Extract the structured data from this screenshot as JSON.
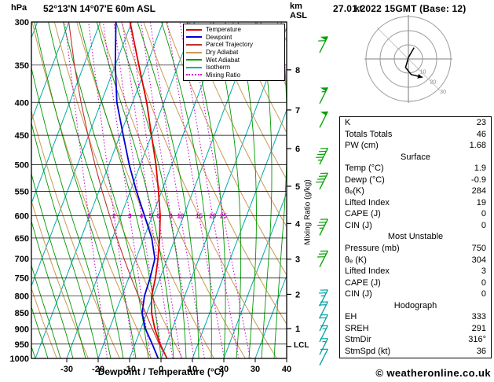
{
  "header": {
    "pressure_unit": "hPa",
    "station": "52°13'N 14°07'E 60m ASL",
    "altitude_unit_top": "km",
    "altitude_unit_bottom": "ASL",
    "datetime": "27.01.2022 15GMT (Base: 12)"
  },
  "axes": {
    "x_label": "Dewpoint / Temperature (°C)",
    "temp_ticks_C": [
      -30,
      -20,
      -10,
      0,
      10,
      20,
      30,
      40
    ],
    "pressure_levels_hPa": [
      300,
      350,
      400,
      450,
      500,
      550,
      600,
      650,
      700,
      750,
      800,
      850,
      900,
      950,
      1000
    ],
    "km_ticks": [
      {
        "value": "8",
        "pressure": 356
      },
      {
        "value": "7",
        "pressure": 411
      },
      {
        "value": "6",
        "pressure": 472
      },
      {
        "value": "5",
        "pressure": 540
      },
      {
        "value": "4",
        "pressure": 617
      },
      {
        "value": "3",
        "pressure": 701
      },
      {
        "value": "2",
        "pressure": 795
      },
      {
        "value": "1",
        "pressure": 899
      }
    ],
    "lcl": {
      "label": "LCL",
      "pressure": 958
    }
  },
  "mixing_ratio": {
    "axis_label": "Mixing Ratio (g/kg)",
    "values": [
      1,
      2,
      3,
      4,
      5,
      6,
      8,
      10,
      15,
      20,
      25
    ],
    "label_pressure": 600
  },
  "legend": {
    "items": [
      {
        "label": "Temperature",
        "color": "#e00000",
        "style": "solid"
      },
      {
        "label": "Dewpoint",
        "color": "#0000d0",
        "style": "solid"
      },
      {
        "label": "Parcel Trajectory",
        "color": "#c03030",
        "style": "solid"
      },
      {
        "label": "Dry Adiabat",
        "color": "#cc9955",
        "style": "solid"
      },
      {
        "label": "Wet Adiabat",
        "color": "#009900",
        "style": "solid"
      },
      {
        "label": "Isotherm",
        "color": "#00aaaa",
        "style": "solid"
      },
      {
        "label": "Mixing Ratio",
        "color": "#cc00cc",
        "style": "dotted"
      }
    ]
  },
  "background": {
    "isotherm_step_C": 10,
    "isotherm_range_C": [
      -120,
      40
    ],
    "dry_adiabats_K": [
      230,
      240,
      250,
      260,
      270,
      280,
      290,
      300,
      310,
      320,
      330,
      340,
      350,
      360,
      370,
      380,
      390
    ],
    "wet_adiabat_starts_C": [
      -60,
      -56,
      -52,
      -48,
      -44,
      -40,
      -36,
      -32,
      -28,
      -24,
      -20,
      -16,
      -12,
      -8,
      -4,
      0,
      4,
      8,
      12,
      16,
      20,
      24,
      28,
      32,
      36
    ],
    "colors": {
      "dry": "#cc9955",
      "wet": "#009900",
      "isotherm": "#00aaaa",
      "mixing": "#cc00cc",
      "grid": "#000000",
      "barb_upper": "#00a000",
      "barb_lower": "#00a0a0"
    }
  },
  "chart_data": {
    "type": "skewt-log-p sounding",
    "title": "52°13'N 14°07'E 60m ASL",
    "x_axis_range_C": [
      -40,
      40
    ],
    "pressure_range_hPa": [
      300,
      1000
    ],
    "y_scale": "log-pressure",
    "pressure_hPa": [
      300,
      350,
      400,
      450,
      500,
      550,
      600,
      650,
      700,
      750,
      800,
      850,
      900,
      950,
      1000
    ],
    "series": [
      {
        "name": "Temperature",
        "color": "#e00000",
        "width": 1.8,
        "values_C": [
          -50.5,
          -42.5,
          -35.5,
          -30,
          -25,
          -21,
          -17.5,
          -15,
          -13,
          -11.5,
          -10.5,
          -8.5,
          -5.5,
          -2,
          1.9
        ]
      },
      {
        "name": "Dewpoint",
        "color": "#0000d0",
        "width": 1.8,
        "values_C": [
          -55,
          -50,
          -45,
          -39,
          -33.5,
          -28,
          -22.5,
          -17.5,
          -14,
          -13.2,
          -12.8,
          -11.5,
          -8.5,
          -4.5,
          -0.9
        ]
      },
      {
        "name": "Parcel Trajectory",
        "color": "#c03030",
        "width": 1.1,
        "values_C": [
          -70,
          -63,
          -56.4,
          -50.2,
          -44.4,
          -38.9,
          -33.6,
          -28.6,
          -23.8,
          -19.2,
          -14.7,
          -10.4,
          -6.3,
          -2.3,
          1.9
        ]
      }
    ]
  },
  "wind_barbs": [
    {
      "p": 325,
      "pennants": 1,
      "full": 1,
      "half": 0,
      "color": "upper"
    },
    {
      "p": 390,
      "pennants": 1,
      "full": 0,
      "half": 1,
      "color": "upper"
    },
    {
      "p": 425,
      "pennants": 1,
      "full": 0,
      "half": 0,
      "color": "upper"
    },
    {
      "p": 485,
      "pennants": 0,
      "full": 4,
      "half": 1,
      "color": "upper"
    },
    {
      "p": 530,
      "pennants": 0,
      "full": 4,
      "half": 0,
      "color": "upper"
    },
    {
      "p": 625,
      "pennants": 0,
      "full": 3,
      "half": 1,
      "color": "upper"
    },
    {
      "p": 700,
      "pennants": 0,
      "full": 3,
      "half": 0,
      "color": "upper"
    },
    {
      "p": 805,
      "pennants": 0,
      "full": 2,
      "half": 1,
      "color": "lower"
    },
    {
      "p": 840,
      "pennants": 0,
      "full": 2,
      "half": 0,
      "color": "lower"
    },
    {
      "p": 880,
      "pennants": 0,
      "full": 2,
      "half": 0,
      "color": "lower"
    },
    {
      "p": 915,
      "pennants": 0,
      "full": 1,
      "half": 1,
      "color": "lower"
    },
    {
      "p": 958,
      "pennants": 0,
      "full": 1,
      "half": 1,
      "color": "lower"
    },
    {
      "p": 995,
      "pennants": 0,
      "full": 1,
      "half": 0,
      "color": "lower"
    }
  ],
  "hodograph": {
    "unit_label": "kt",
    "rings_kt": [
      10,
      20,
      30
    ],
    "ring_labels": [
      "10",
      "20",
      "30"
    ],
    "trace_kt": [
      [
        4,
        -8
      ],
      [
        0,
        -1
      ],
      [
        -2,
        6
      ],
      [
        2,
        11
      ],
      [
        10,
        13
      ]
    ]
  },
  "table": {
    "rows": [
      {
        "label": "K",
        "value": "23"
      },
      {
        "label": "Totals Totals",
        "value": "46"
      },
      {
        "label": "PW (cm)",
        "value": "1.68"
      },
      {
        "header": "Surface"
      },
      {
        "label": "Temp (°C)",
        "value": "1.9"
      },
      {
        "label": "Dewp (°C)",
        "value": "-0.9"
      },
      {
        "label": "θₑ(K)",
        "value": "284"
      },
      {
        "label": "Lifted Index",
        "value": "19"
      },
      {
        "label": "CAPE (J)",
        "value": "0"
      },
      {
        "label": "CIN (J)",
        "value": "0"
      },
      {
        "header": "Most Unstable"
      },
      {
        "label": "Pressure (mb)",
        "value": "750"
      },
      {
        "label": "θₑ (K)",
        "value": "304"
      },
      {
        "label": "Lifted Index",
        "value": "3"
      },
      {
        "label": "CAPE (J)",
        "value": "0"
      },
      {
        "label": "CIN (J)",
        "value": "0"
      },
      {
        "header": "Hodograph"
      },
      {
        "label": "EH",
        "value": "333"
      },
      {
        "label": "SREH",
        "value": "291"
      },
      {
        "label": "StmDir",
        "value": "316°"
      },
      {
        "label": "StmSpd (kt)",
        "value": "36"
      }
    ]
  },
  "footer": {
    "copyright": "© weatheronline.co.uk"
  }
}
